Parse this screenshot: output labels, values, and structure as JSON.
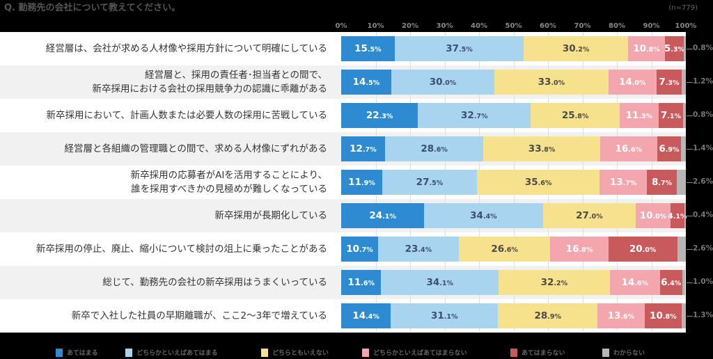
{
  "chart_data": {
    "type": "bar",
    "orientation": "horizontal",
    "stacked": true,
    "title": "Q. 勤務先の会社について教えてください。",
    "note": "(n=779)",
    "xlim": [
      0,
      100
    ],
    "x_ticks": [
      "0%",
      "10%",
      "20%",
      "30%",
      "40%",
      "50%",
      "60%",
      "70%",
      "80%",
      "90%",
      "100%"
    ],
    "legend_position": "bottom",
    "categories": [
      "経営層は、会社が求める人材像や採用方針について明確にしている",
      "経営層と、採用の責任者･担当者との間で、\n新卒採用における会社の採用競争力の認識に乖離がある",
      "新卒採用において、計画人数または必要人数の採用に苦戦している",
      "経営層と各組織の管理職との間で、求める人材像にずれがある",
      "新卒採用の応募者がAIを活用することにより、\n誰を採用すべきかの見極めが難しくなっている",
      "新卒採用が長期化している",
      "新卒採用の停止、廃止、縮小について検討の俎上に乗ったことがある",
      "総じて、勤務先の会社の新卒採用はうまくいっている",
      "新卒で入社した社員の早期離職が、ここ2〜3年で増えている"
    ],
    "series": [
      {
        "name": "あてはまる",
        "color": "#2f8bd1",
        "text_color": "#ffffff",
        "values": [
          15.5,
          14.5,
          22.3,
          12.7,
          11.9,
          24.1,
          10.7,
          11.6,
          14.4
        ]
      },
      {
        "name": "どちらかといえばあてはまる",
        "color": "#a9d4ef",
        "text_color": "#3b4f73",
        "values": [
          37.5,
          30.0,
          32.7,
          28.6,
          27.5,
          34.4,
          23.4,
          34.1,
          31.1
        ]
      },
      {
        "name": "どちらともいえない",
        "color": "#f6e18c",
        "text_color": "#4a4a4a",
        "values": [
          30.2,
          33.0,
          25.8,
          33.8,
          35.6,
          27.0,
          26.6,
          32.2,
          28.9
        ]
      },
      {
        "name": "どちらかといえばあてはまらない",
        "color": "#f3a6ae",
        "text_color": "#ffffff",
        "values": [
          10.8,
          14.0,
          11.3,
          16.6,
          13.7,
          10.0,
          16.8,
          14.6,
          13.6
        ]
      },
      {
        "name": "あてはまらない",
        "color": "#c95a5b",
        "text_color": "#ffffff",
        "values": [
          5.3,
          7.3,
          7.1,
          6.9,
          8.7,
          4.1,
          20.0,
          6.4,
          10.8
        ]
      },
      {
        "name": "わからない",
        "color": "#b6b6b6",
        "text_color": "#777777",
        "values": [
          0.8,
          1.2,
          0.8,
          1.4,
          2.6,
          0.4,
          2.6,
          1.0,
          1.3
        ]
      }
    ]
  }
}
